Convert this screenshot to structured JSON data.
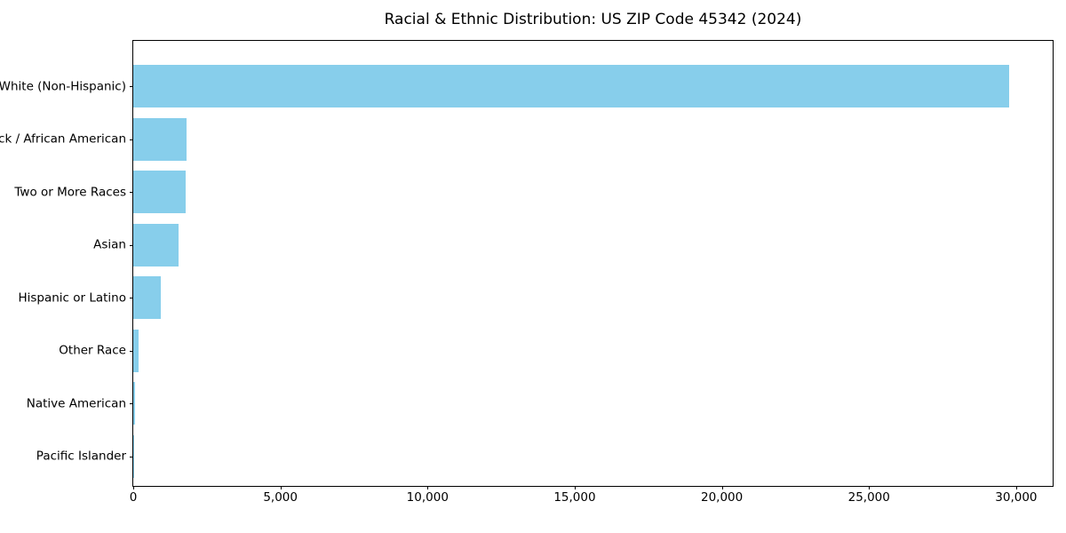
{
  "figure": {
    "background": "#FFFFFF"
  },
  "chart_data": {
    "type": "bar",
    "orientation": "horizontal",
    "title": "Racial & Ethnic Distribution: US ZIP Code 45342 (2024)",
    "categories": [
      "White (Non-Hispanic)",
      "Black / African American",
      "Two or More Races",
      "Asian",
      "Hispanic or Latino",
      "Other Race",
      "Native American",
      "Pacific Islander"
    ],
    "values": [
      29750,
      1810,
      1780,
      1545,
      935,
      195,
      55,
      15
    ],
    "xlabel": "",
    "ylabel": "",
    "xlim": [
      0,
      31240
    ],
    "xticks": [
      0,
      5000,
      10000,
      15000,
      20000,
      25000,
      30000
    ],
    "xtick_labels": [
      "0",
      "5,000",
      "10,000",
      "15,000",
      "20,000",
      "25,000",
      "30,000"
    ],
    "bar_color": "#87CEEB",
    "axis_color": "#000000",
    "text_color": "#000000",
    "grid": false,
    "legend": false
  }
}
